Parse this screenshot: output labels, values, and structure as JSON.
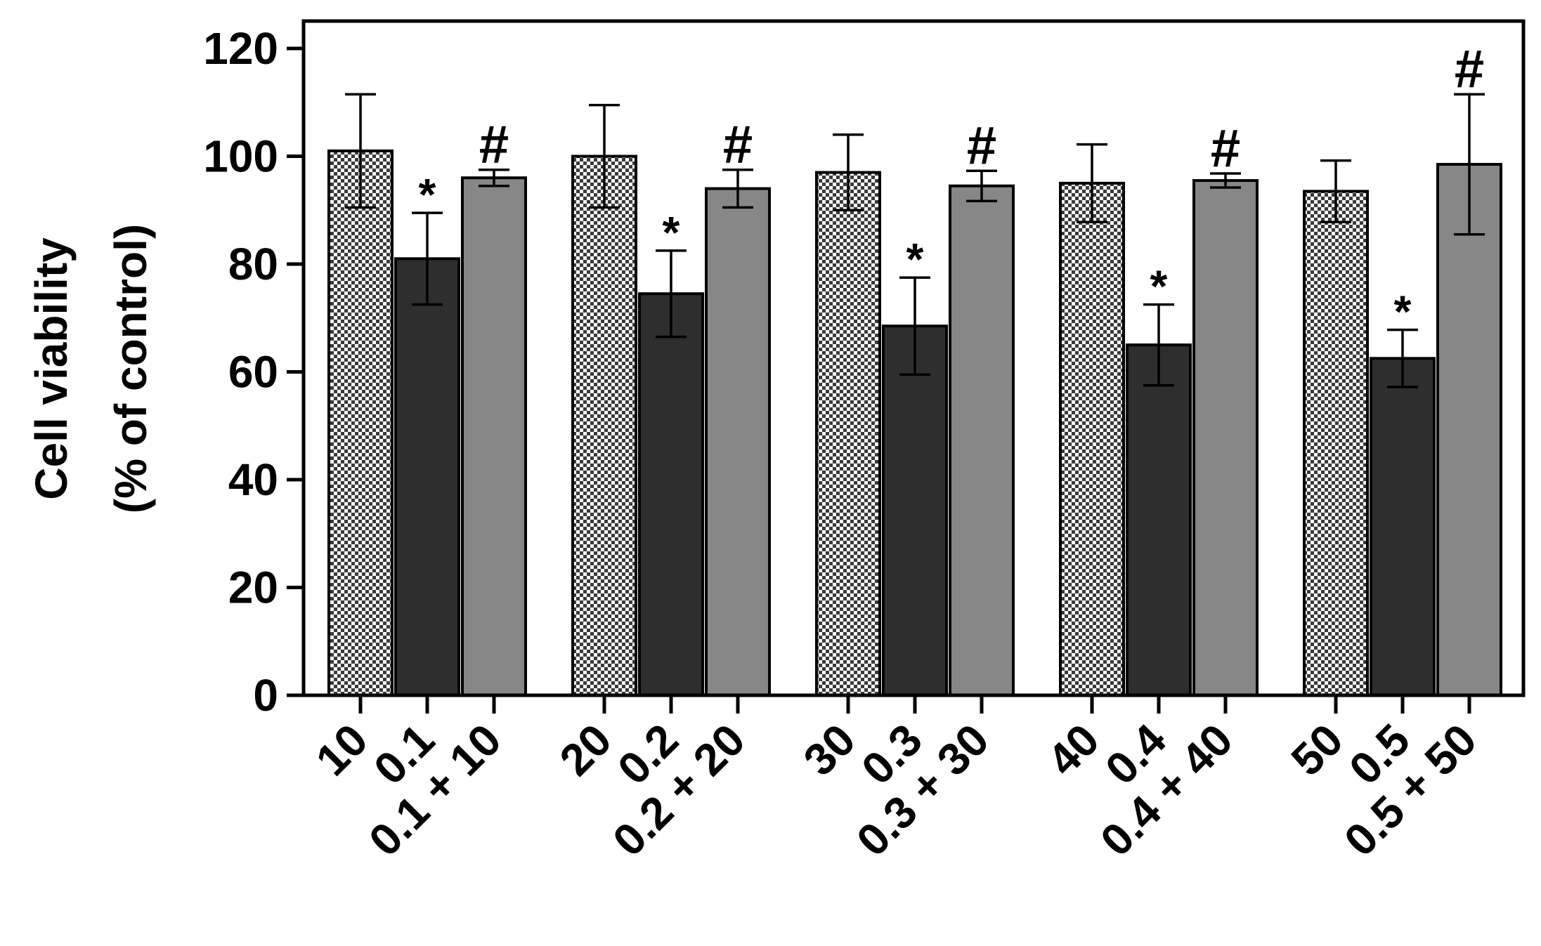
{
  "chart_data": {
    "type": "bar",
    "title": "",
    "ylabel_line1": "Cell viability",
    "ylabel_line2": "(% of control)",
    "xlabel": "",
    "ylim": [
      0,
      120
    ],
    "yticks": [
      0,
      20,
      40,
      60,
      80,
      100,
      120
    ],
    "ytick_labels": [
      "0",
      "20",
      "40",
      "60",
      "80",
      "100",
      "120"
    ],
    "grid": false,
    "legend": "none",
    "series_styles": [
      {
        "key": "single_a",
        "fill": "checker",
        "color_light": "#ffffff",
        "color_dark": "#3a3a3a"
      },
      {
        "key": "single_b",
        "fill": "solid",
        "color": "#2e2e2e"
      },
      {
        "key": "combination",
        "fill": "solid",
        "color": "#878787"
      }
    ],
    "groups": [
      {
        "bars": [
          {
            "label": "10",
            "value": 101,
            "error": 10.5,
            "marker": ""
          },
          {
            "label": "0.1",
            "value": 81,
            "error": 8.5,
            "marker": "*"
          },
          {
            "label": "0.1 + 10",
            "value": 96,
            "error": 1.5,
            "marker": "#"
          }
        ]
      },
      {
        "bars": [
          {
            "label": "20",
            "value": 100,
            "error": 9.5,
            "marker": ""
          },
          {
            "label": "0.2",
            "value": 74.5,
            "error": 8,
            "marker": "*"
          },
          {
            "label": "0.2 + 20",
            "value": 94,
            "error": 3.5,
            "marker": "#"
          }
        ]
      },
      {
        "bars": [
          {
            "label": "30",
            "value": 97,
            "error": 7,
            "marker": ""
          },
          {
            "label": "0.3",
            "value": 68.5,
            "error": 9,
            "marker": "*"
          },
          {
            "label": "0.3 + 30",
            "value": 94.5,
            "error": 2.8,
            "marker": "#"
          }
        ]
      },
      {
        "bars": [
          {
            "label": "40",
            "value": 95,
            "error": 7.2,
            "marker": ""
          },
          {
            "label": "0.4",
            "value": 65,
            "error": 7.5,
            "marker": "*"
          },
          {
            "label": "0.4 + 40",
            "value": 95.5,
            "error": 1.3,
            "marker": "#"
          }
        ]
      },
      {
        "bars": [
          {
            "label": "50",
            "value": 93.5,
            "error": 5.7,
            "marker": ""
          },
          {
            "label": "0.5",
            "value": 62.5,
            "error": 5.3,
            "marker": "*"
          },
          {
            "label": "0.5 + 50",
            "value": 98.5,
            "error": 13,
            "marker": "#"
          }
        ]
      }
    ]
  }
}
